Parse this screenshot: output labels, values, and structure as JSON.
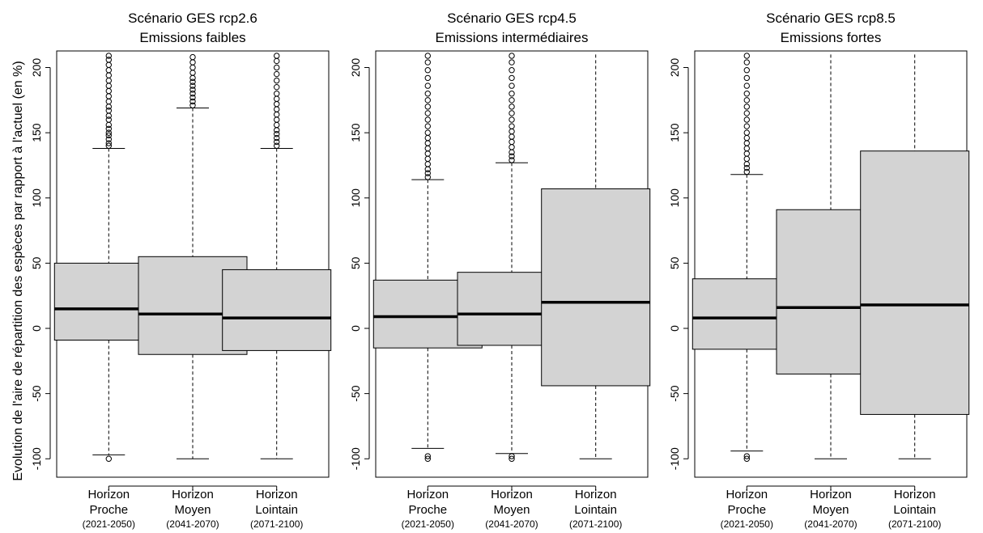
{
  "ylabel": "Evolution de l'aire de répartition des espèces par rapport à l'actuel (en %)",
  "colors": {
    "box_fill": "#d3d3d3",
    "stroke": "#000000"
  },
  "chart_data": [
    {
      "type": "boxplot",
      "title": "Scénario GES rcp2.6",
      "subtitle": "Emissions faibles",
      "yticks": [
        -100,
        -50,
        0,
        50,
        100,
        150,
        200
      ],
      "categories": [
        {
          "line1": "Horizon",
          "line2": "Proche",
          "line3": "(2021-2050)"
        },
        {
          "line1": "Horizon",
          "line2": "Moyen",
          "line3": "(2041-2070)"
        },
        {
          "line1": "Horizon",
          "line2": "Lointain",
          "line3": "(2071-2100)"
        }
      ],
      "boxes": [
        {
          "whisker_low": -97,
          "q1": -9,
          "median": 15,
          "q3": 50,
          "whisker_high": 138,
          "outliers_low": [
            -100
          ],
          "outliers_high": [
            140,
            142,
            145,
            148,
            150,
            153,
            156,
            160,
            163,
            167,
            170,
            174,
            178,
            182,
            186,
            190,
            194,
            198,
            202,
            206,
            209
          ]
        },
        {
          "whisker_low": -100,
          "q1": -20,
          "median": 11,
          "q3": 55,
          "whisker_high": 169,
          "outliers_low": [],
          "outliers_high": [
            171,
            174,
            177,
            180,
            183,
            186,
            189,
            192,
            196,
            200,
            204,
            208
          ]
        },
        {
          "whisker_low": -100,
          "q1": -17,
          "median": 8,
          "q3": 45,
          "whisker_high": 138,
          "outliers_low": [],
          "outliers_high": [
            140,
            143,
            146,
            149,
            152,
            156,
            160,
            164,
            168,
            172,
            176,
            180,
            185,
            190,
            195,
            200,
            205,
            209
          ]
        }
      ]
    },
    {
      "type": "boxplot",
      "title": "Scénario GES rcp4.5",
      "subtitle": "Emissions intermédiaires",
      "yticks": [
        -100,
        -50,
        0,
        50,
        100,
        150,
        200
      ],
      "categories": [
        {
          "line1": "Horizon",
          "line2": "Proche",
          "line3": "(2021-2050)"
        },
        {
          "line1": "Horizon",
          "line2": "Moyen",
          "line3": "(2041-2070)"
        },
        {
          "line1": "Horizon",
          "line2": "Lointain",
          "line3": "(2071-2100)"
        }
      ],
      "boxes": [
        {
          "whisker_low": -92,
          "q1": -15,
          "median": 9,
          "q3": 37,
          "whisker_high": 114,
          "outliers_low": [
            -98,
            -100
          ],
          "outliers_high": [
            116,
            119,
            122,
            126,
            130,
            134,
            138,
            142,
            146,
            150,
            155,
            160,
            165,
            170,
            175,
            180,
            186,
            192,
            198,
            204,
            209
          ]
        },
        {
          "whisker_low": -96,
          "q1": -13,
          "median": 11,
          "q3": 43,
          "whisker_high": 127,
          "outliers_low": [
            -98,
            -100
          ],
          "outliers_high": [
            129,
            132,
            135,
            139,
            143,
            147,
            151,
            155,
            160,
            165,
            170,
            175,
            180,
            186,
            192,
            198,
            204,
            209
          ]
        },
        {
          "whisker_low": -100,
          "q1": -44,
          "median": 20,
          "q3": 107,
          "whisker_high": 210,
          "outliers_low": [],
          "outliers_high": []
        }
      ]
    },
    {
      "type": "boxplot",
      "title": "Scénario GES rcp8.5",
      "subtitle": "Emissions fortes",
      "yticks": [
        -100,
        -50,
        0,
        50,
        100,
        150,
        200
      ],
      "categories": [
        {
          "line1": "Horizon",
          "line2": "Proche",
          "line3": "(2021-2050)"
        },
        {
          "line1": "Horizon",
          "line2": "Moyen",
          "line3": "(2041-2070)"
        },
        {
          "line1": "Horizon",
          "line2": "Lointain",
          "line3": "(2071-2100)"
        }
      ],
      "boxes": [
        {
          "whisker_low": -94,
          "q1": -16,
          "median": 8,
          "q3": 38,
          "whisker_high": 118,
          "outliers_low": [
            -98,
            -100
          ],
          "outliers_high": [
            120,
            123,
            126,
            130,
            134,
            138,
            142,
            146,
            150,
            155,
            160,
            165,
            170,
            175,
            180,
            186,
            192,
            198,
            204,
            209
          ]
        },
        {
          "whisker_low": -100,
          "q1": -35,
          "median": 16,
          "q3": 91,
          "whisker_high": 210,
          "outliers_low": [],
          "outliers_high": []
        },
        {
          "whisker_low": -100,
          "q1": -66,
          "median": 18,
          "q3": 136,
          "whisker_high": 210,
          "outliers_low": [],
          "outliers_high": []
        }
      ]
    }
  ]
}
